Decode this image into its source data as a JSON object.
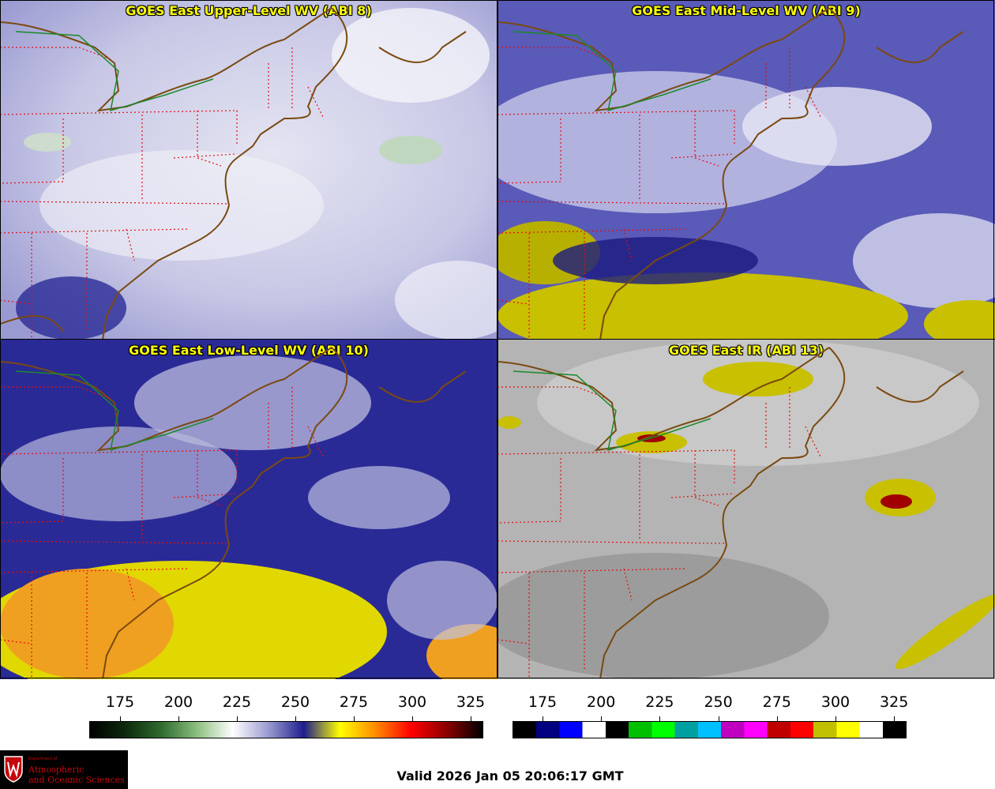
{
  "panels": [
    {
      "title": "GOES East Upper-Level WV (ABI 8)"
    },
    {
      "title": "GOES East Mid-Level WV (ABI 9)"
    },
    {
      "title": "GOES East Low-Level WV (ABI 10)"
    },
    {
      "title": "GOES East IR (ABI 13)"
    }
  ],
  "colorbars": {
    "wv": {
      "ticks": [
        "175",
        "200",
        "225",
        "250",
        "275",
        "300",
        "325"
      ],
      "colors": [
        "#000000",
        "#0d2a0d",
        "#2f6b2f",
        "#8cbf7f",
        "#ffffff",
        "#9a9ad0",
        "#1e1e8c",
        "#ffff00",
        "#ff8c00",
        "#ff0000",
        "#8b0000",
        "#000000"
      ]
    },
    "ir": {
      "ticks": [
        "175",
        "200",
        "225",
        "250",
        "275",
        "300",
        "325"
      ],
      "segments": [
        "#000000",
        "#000080",
        "#0000ff",
        "#ffffff",
        "#000000",
        "#00c000",
        "#00ff00",
        "#00a0a0",
        "#00c0ff",
        "#c000c0",
        "#ff00ff",
        "#c00000",
        "#ff0000",
        "#c0c000",
        "#ffff00",
        "#ffffff",
        "#000000"
      ]
    }
  },
  "logo": {
    "small": "Department of",
    "line1": "Atmospheric",
    "line2": "and Oceanic Sciences"
  },
  "valid_time": "Valid 2026 Jan 05 20:06:17 GMT"
}
